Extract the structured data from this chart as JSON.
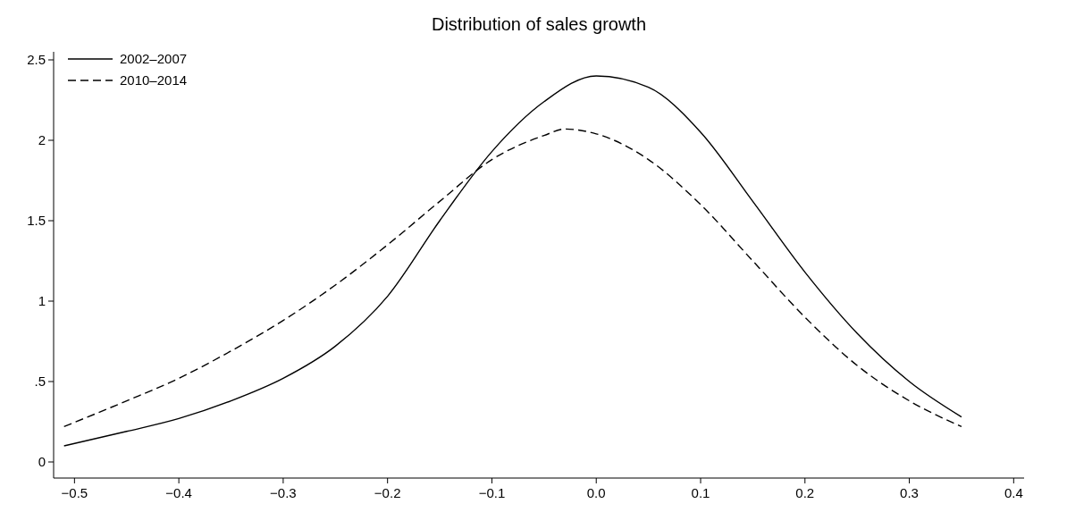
{
  "chart_data": {
    "type": "line",
    "title": "Distribution of sales growth",
    "xlim": [
      -0.52,
      0.41
    ],
    "ylim": [
      -0.1,
      2.55
    ],
    "xticks": [
      {
        "value": -0.5,
        "label": "−0.5"
      },
      {
        "value": -0.4,
        "label": "−0.4"
      },
      {
        "value": -0.3,
        "label": "−0.3"
      },
      {
        "value": -0.2,
        "label": "−0.2"
      },
      {
        "value": -0.1,
        "label": "−0.1"
      },
      {
        "value": 0,
        "label": "0.0"
      },
      {
        "value": 0.1,
        "label": "0.1"
      },
      {
        "value": 0.2,
        "label": "0.2"
      },
      {
        "value": 0.3,
        "label": "0.3"
      },
      {
        "value": 0.4,
        "label": "0.4"
      }
    ],
    "yticks": [
      0,
      {
        "value": 0.5,
        "label": ".5"
      },
      1,
      1.5,
      2,
      2.5
    ],
    "grid": false,
    "legend": "top left",
    "marker": "none",
    "series": [
      {
        "name": "2002–2007",
        "color": "#000000",
        "line_style": "solid",
        "x": [
          -0.51,
          -0.45,
          -0.4,
          -0.35,
          -0.3,
          -0.25,
          -0.2,
          -0.15,
          -0.1,
          -0.05,
          0,
          0.05,
          0.1,
          0.15,
          0.2,
          0.25,
          0.3,
          0.35
        ],
        "values": [
          0.1,
          0.19,
          0.27,
          0.38,
          0.52,
          0.72,
          1.03,
          1.5,
          1.93,
          2.24,
          2.4,
          2.33,
          2.05,
          1.62,
          1.18,
          0.8,
          0.5,
          0.28
        ]
      },
      {
        "name": "2010–2014",
        "color": "#000000",
        "line_style": "dashed",
        "x": [
          -0.51,
          -0.45,
          -0.4,
          -0.35,
          -0.3,
          -0.25,
          -0.2,
          -0.15,
          -0.1,
          -0.05,
          -0.03,
          0,
          0.05,
          0.1,
          0.15,
          0.2,
          0.25,
          0.3,
          0.35
        ],
        "values": [
          0.22,
          0.38,
          0.52,
          0.69,
          0.88,
          1.1,
          1.35,
          1.62,
          1.88,
          2.03,
          2.07,
          2.04,
          1.88,
          1.6,
          1.25,
          0.9,
          0.6,
          0.38,
          0.22
        ]
      }
    ]
  }
}
